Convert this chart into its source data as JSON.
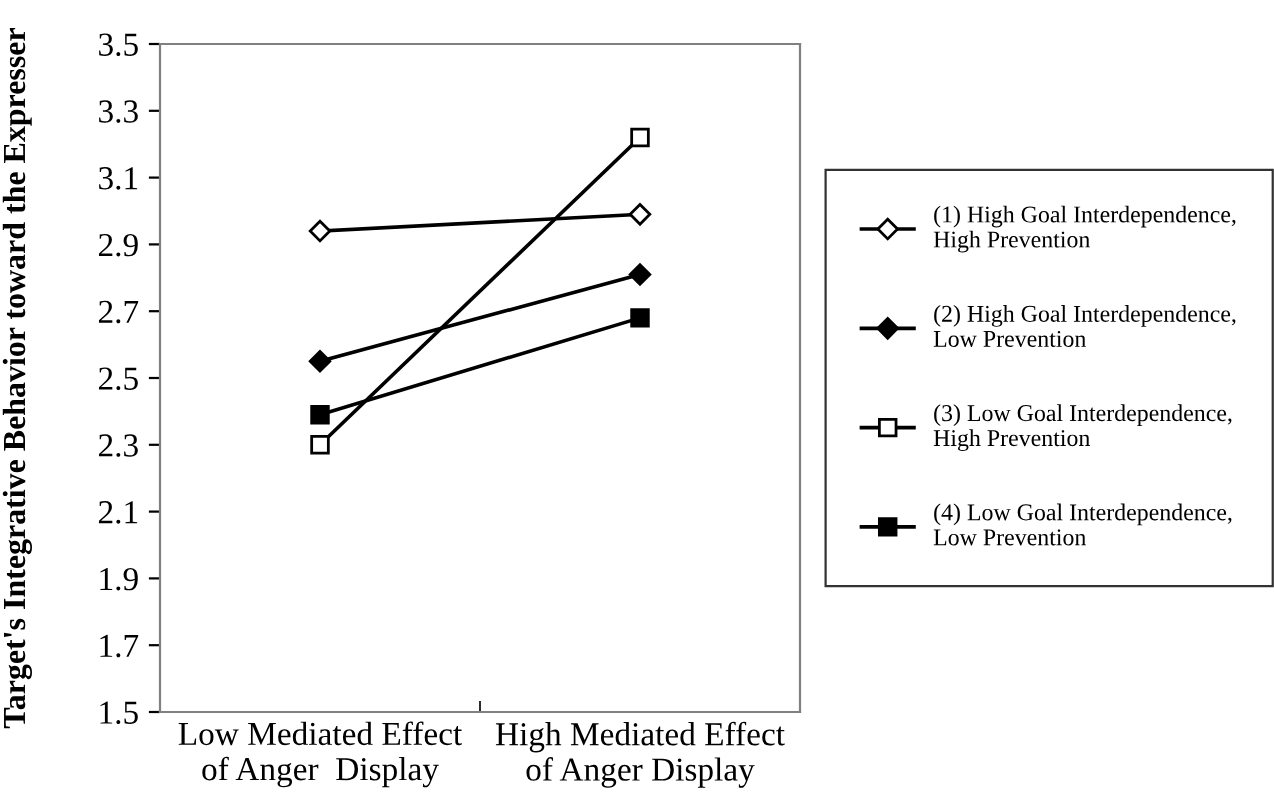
{
  "chart_data": {
    "type": "line",
    "ylabel": "Target's Integrative Behavior toward the Expresser",
    "categories": [
      "Low Mediated Effect\nof Anger  Display",
      "High Mediated Effect\nof Anger Display"
    ],
    "ylim": [
      1.5,
      3.5
    ],
    "yticks": [
      1.5,
      1.7,
      1.9,
      2.1,
      2.3,
      2.5,
      2.7,
      2.9,
      3.1,
      3.3,
      3.5
    ],
    "grid": false,
    "legend": "right",
    "series": [
      {
        "name": "(1) High Goal Interdependence,\nHigh Prevention",
        "color": "#000000",
        "marker": "diamond",
        "values": [
          2.94,
          2.99
        ]
      },
      {
        "name": "(2) High Goal Interdependence,\nLow Prevention",
        "color": "#000000",
        "marker": "diamond",
        "values": [
          2.55,
          2.81
        ]
      },
      {
        "name": "(3) Low Goal Interdependence,\nHigh Prevention",
        "color": "#000000",
        "marker": "square",
        "values": [
          2.3,
          3.22
        ]
      },
      {
        "name": "(4) Low Goal Interdependence,\nLow Prevention",
        "color": "#000000",
        "marker": "square",
        "values": [
          2.39,
          2.68
        ]
      }
    ]
  }
}
